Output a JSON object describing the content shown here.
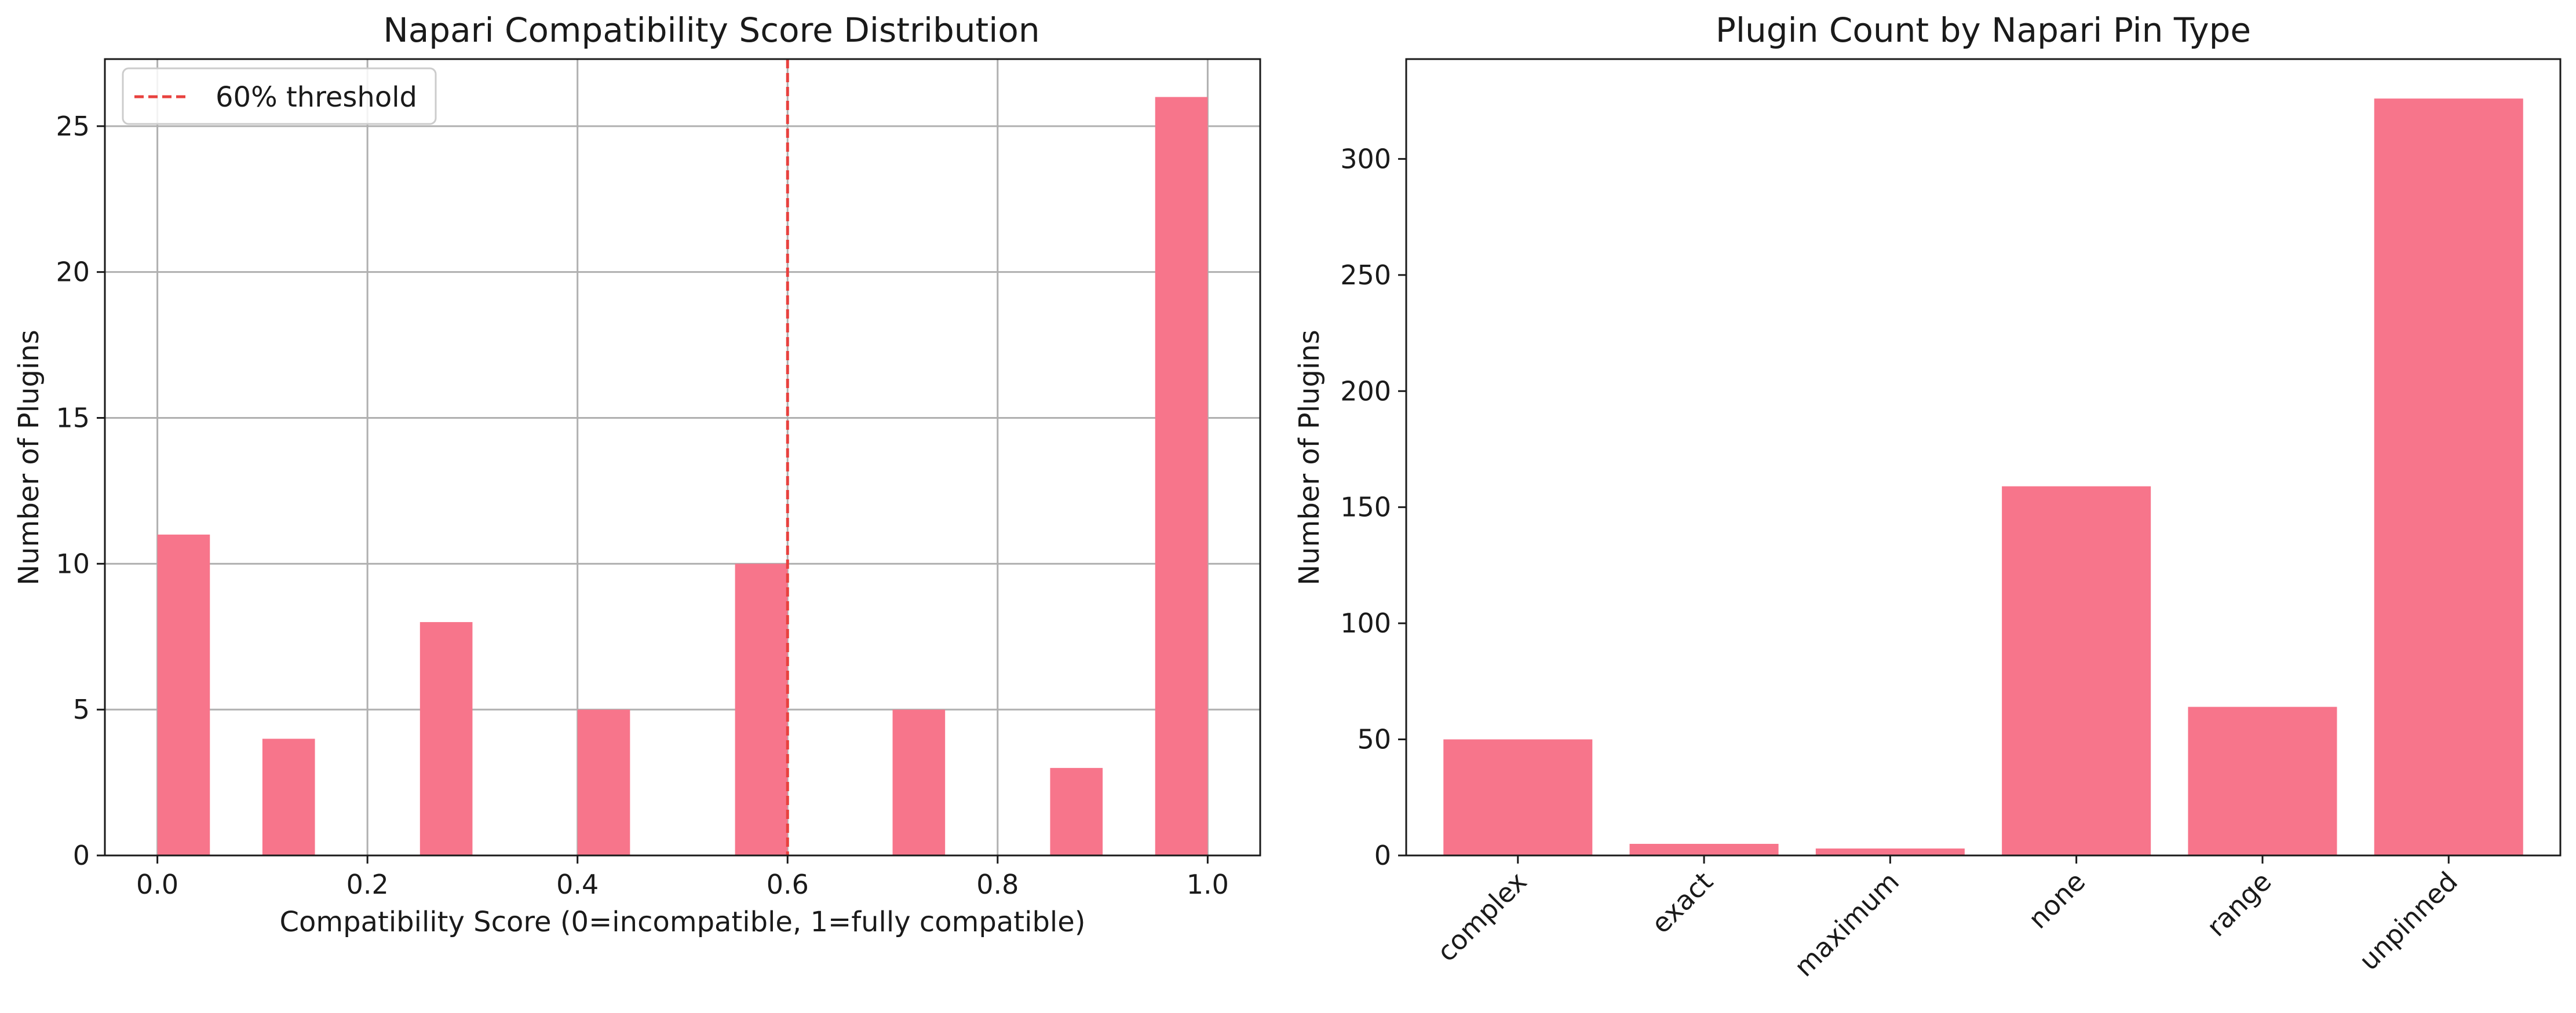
{
  "chart_data": [
    {
      "type": "bar",
      "title": "Napari Compatibility Score Distribution",
      "xlabel": "Compatibility Score (0=incompatible, 1=fully compatible)",
      "ylabel": "Number of Plugins",
      "xlim": [
        -0.05,
        1.05
      ],
      "ylim": [
        0,
        27.3
      ],
      "xticks": [
        "0.0",
        "0.2",
        "0.4",
        "0.6",
        "0.8",
        "1.0"
      ],
      "yticks": [
        "0",
        "5",
        "10",
        "15",
        "20",
        "25"
      ],
      "grid": true,
      "bar_color": "#f7758b",
      "bin_width": 0.05,
      "bins": [
        {
          "x": 0.0,
          "value": 11
        },
        {
          "x": 0.1,
          "value": 4
        },
        {
          "x": 0.25,
          "value": 8
        },
        {
          "x": 0.4,
          "value": 5
        },
        {
          "x": 0.55,
          "value": 10
        },
        {
          "x": 0.7,
          "value": 5
        },
        {
          "x": 0.85,
          "value": 3
        },
        {
          "x": 0.95,
          "value": 26
        }
      ],
      "threshold": {
        "x": 0.6,
        "label": "60% threshold",
        "color": "#e8413e"
      },
      "legend_position": "top-left"
    },
    {
      "type": "bar",
      "title": "Plugin Count by Napari Pin Type",
      "xlabel": "",
      "ylabel": "Number of Plugins",
      "ylim": [
        0,
        343
      ],
      "yticks": [
        "0",
        "50",
        "100",
        "150",
        "200",
        "250",
        "300"
      ],
      "grid": false,
      "bar_color": "#f7758b",
      "categories": [
        "complex",
        "exact",
        "maximum",
        "none",
        "range",
        "unpinned"
      ],
      "values": [
        50,
        5,
        3,
        159,
        64,
        326
      ]
    }
  ]
}
